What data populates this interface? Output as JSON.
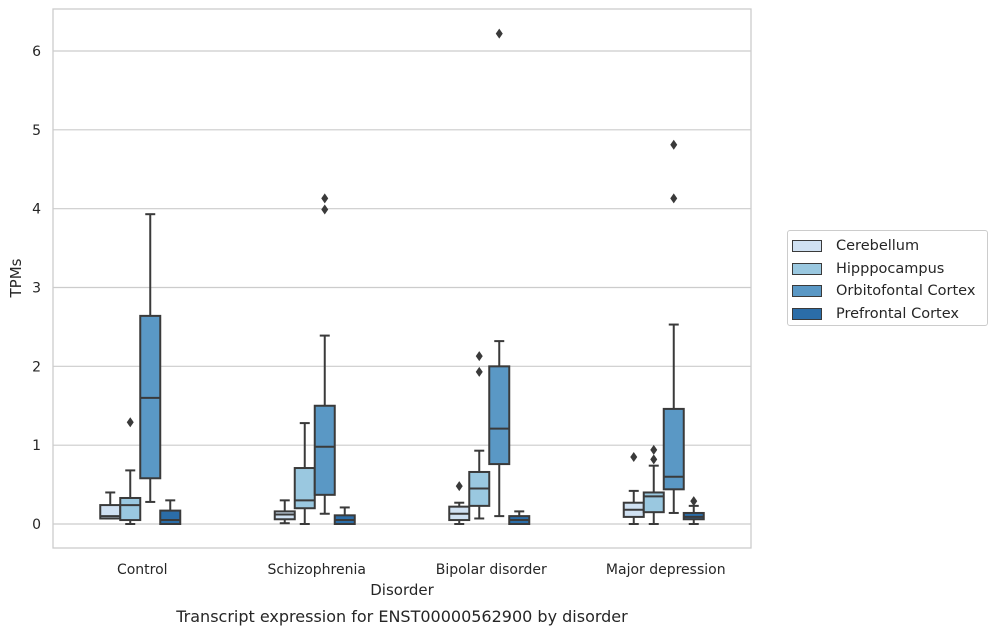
{
  "chart_data": {
    "type": "box",
    "title": "",
    "caption": "Transcript expression for ENST00000562900 by disorder",
    "xlabel": "Disorder",
    "ylabel": "TPMs",
    "ylim": [
      -0.3,
      6.5
    ],
    "yticks": [
      0,
      1,
      2,
      3,
      4,
      5,
      6
    ],
    "grid": true,
    "legend_position": "right",
    "categories": [
      "Control",
      "Schizophrenia",
      "Bipolar disorder",
      "Major depression"
    ],
    "series": [
      {
        "name": "Cerebellum",
        "color": "#d0e1f2",
        "boxes": [
          {
            "whisker_low": 0.07,
            "q1": 0.07,
            "median": 0.1,
            "q3": 0.24,
            "whisker_high": 0.4,
            "outliers": []
          },
          {
            "whisker_low": 0.01,
            "q1": 0.06,
            "median": 0.12,
            "q3": 0.16,
            "whisker_high": 0.3,
            "outliers": []
          },
          {
            "whisker_low": 0.0,
            "q1": 0.05,
            "median": 0.13,
            "q3": 0.22,
            "whisker_high": 0.27,
            "outliers": [
              0.48
            ]
          },
          {
            "whisker_low": 0.0,
            "q1": 0.09,
            "median": 0.18,
            "q3": 0.27,
            "whisker_high": 0.42,
            "outliers": [
              0.85
            ]
          }
        ]
      },
      {
        "name": "Hipppocampus",
        "color": "#9ac8e0",
        "boxes": [
          {
            "whisker_low": 0.0,
            "q1": 0.05,
            "median": 0.24,
            "q3": 0.33,
            "whisker_high": 0.68,
            "outliers": [
              1.29
            ]
          },
          {
            "whisker_low": 0.0,
            "q1": 0.2,
            "median": 0.3,
            "q3": 0.71,
            "whisker_high": 1.28,
            "outliers": []
          },
          {
            "whisker_low": 0.07,
            "q1": 0.23,
            "median": 0.45,
            "q3": 0.66,
            "whisker_high": 0.93,
            "outliers": [
              1.93,
              2.13
            ]
          },
          {
            "whisker_low": 0.0,
            "q1": 0.15,
            "median": 0.35,
            "q3": 0.4,
            "whisker_high": 0.74,
            "outliers": [
              0.82,
              0.94
            ]
          }
        ]
      },
      {
        "name": "Orbitofontal Cortex",
        "color": "#5a98c5",
        "boxes": [
          {
            "whisker_low": 0.28,
            "q1": 0.58,
            "median": 1.6,
            "q3": 2.64,
            "whisker_high": 3.93,
            "outliers": []
          },
          {
            "whisker_low": 0.13,
            "q1": 0.37,
            "median": 0.98,
            "q3": 1.5,
            "whisker_high": 2.39,
            "outliers": [
              3.99,
              4.13
            ]
          },
          {
            "whisker_low": 0.1,
            "q1": 0.76,
            "median": 1.21,
            "q3": 2.0,
            "whisker_high": 2.32,
            "outliers": [
              6.22
            ]
          },
          {
            "whisker_low": 0.14,
            "q1": 0.44,
            "median": 0.6,
            "q3": 1.46,
            "whisker_high": 2.53,
            "outliers": [
              4.13,
              4.81
            ]
          }
        ]
      },
      {
        "name": "Prefrontal Cortex",
        "color": "#2b6da8",
        "boxes": [
          {
            "whisker_low": 0.0,
            "q1": 0.0,
            "median": 0.05,
            "q3": 0.17,
            "whisker_high": 0.3,
            "outliers": []
          },
          {
            "whisker_low": 0.0,
            "q1": 0.0,
            "median": 0.05,
            "q3": 0.11,
            "whisker_high": 0.21,
            "outliers": []
          },
          {
            "whisker_low": 0.0,
            "q1": 0.0,
            "median": 0.05,
            "q3": 0.1,
            "whisker_high": 0.16,
            "outliers": []
          },
          {
            "whisker_low": 0.0,
            "q1": 0.06,
            "median": 0.09,
            "q3": 0.14,
            "whisker_high": 0.23,
            "outliers": [
              0.29
            ]
          }
        ]
      }
    ]
  }
}
